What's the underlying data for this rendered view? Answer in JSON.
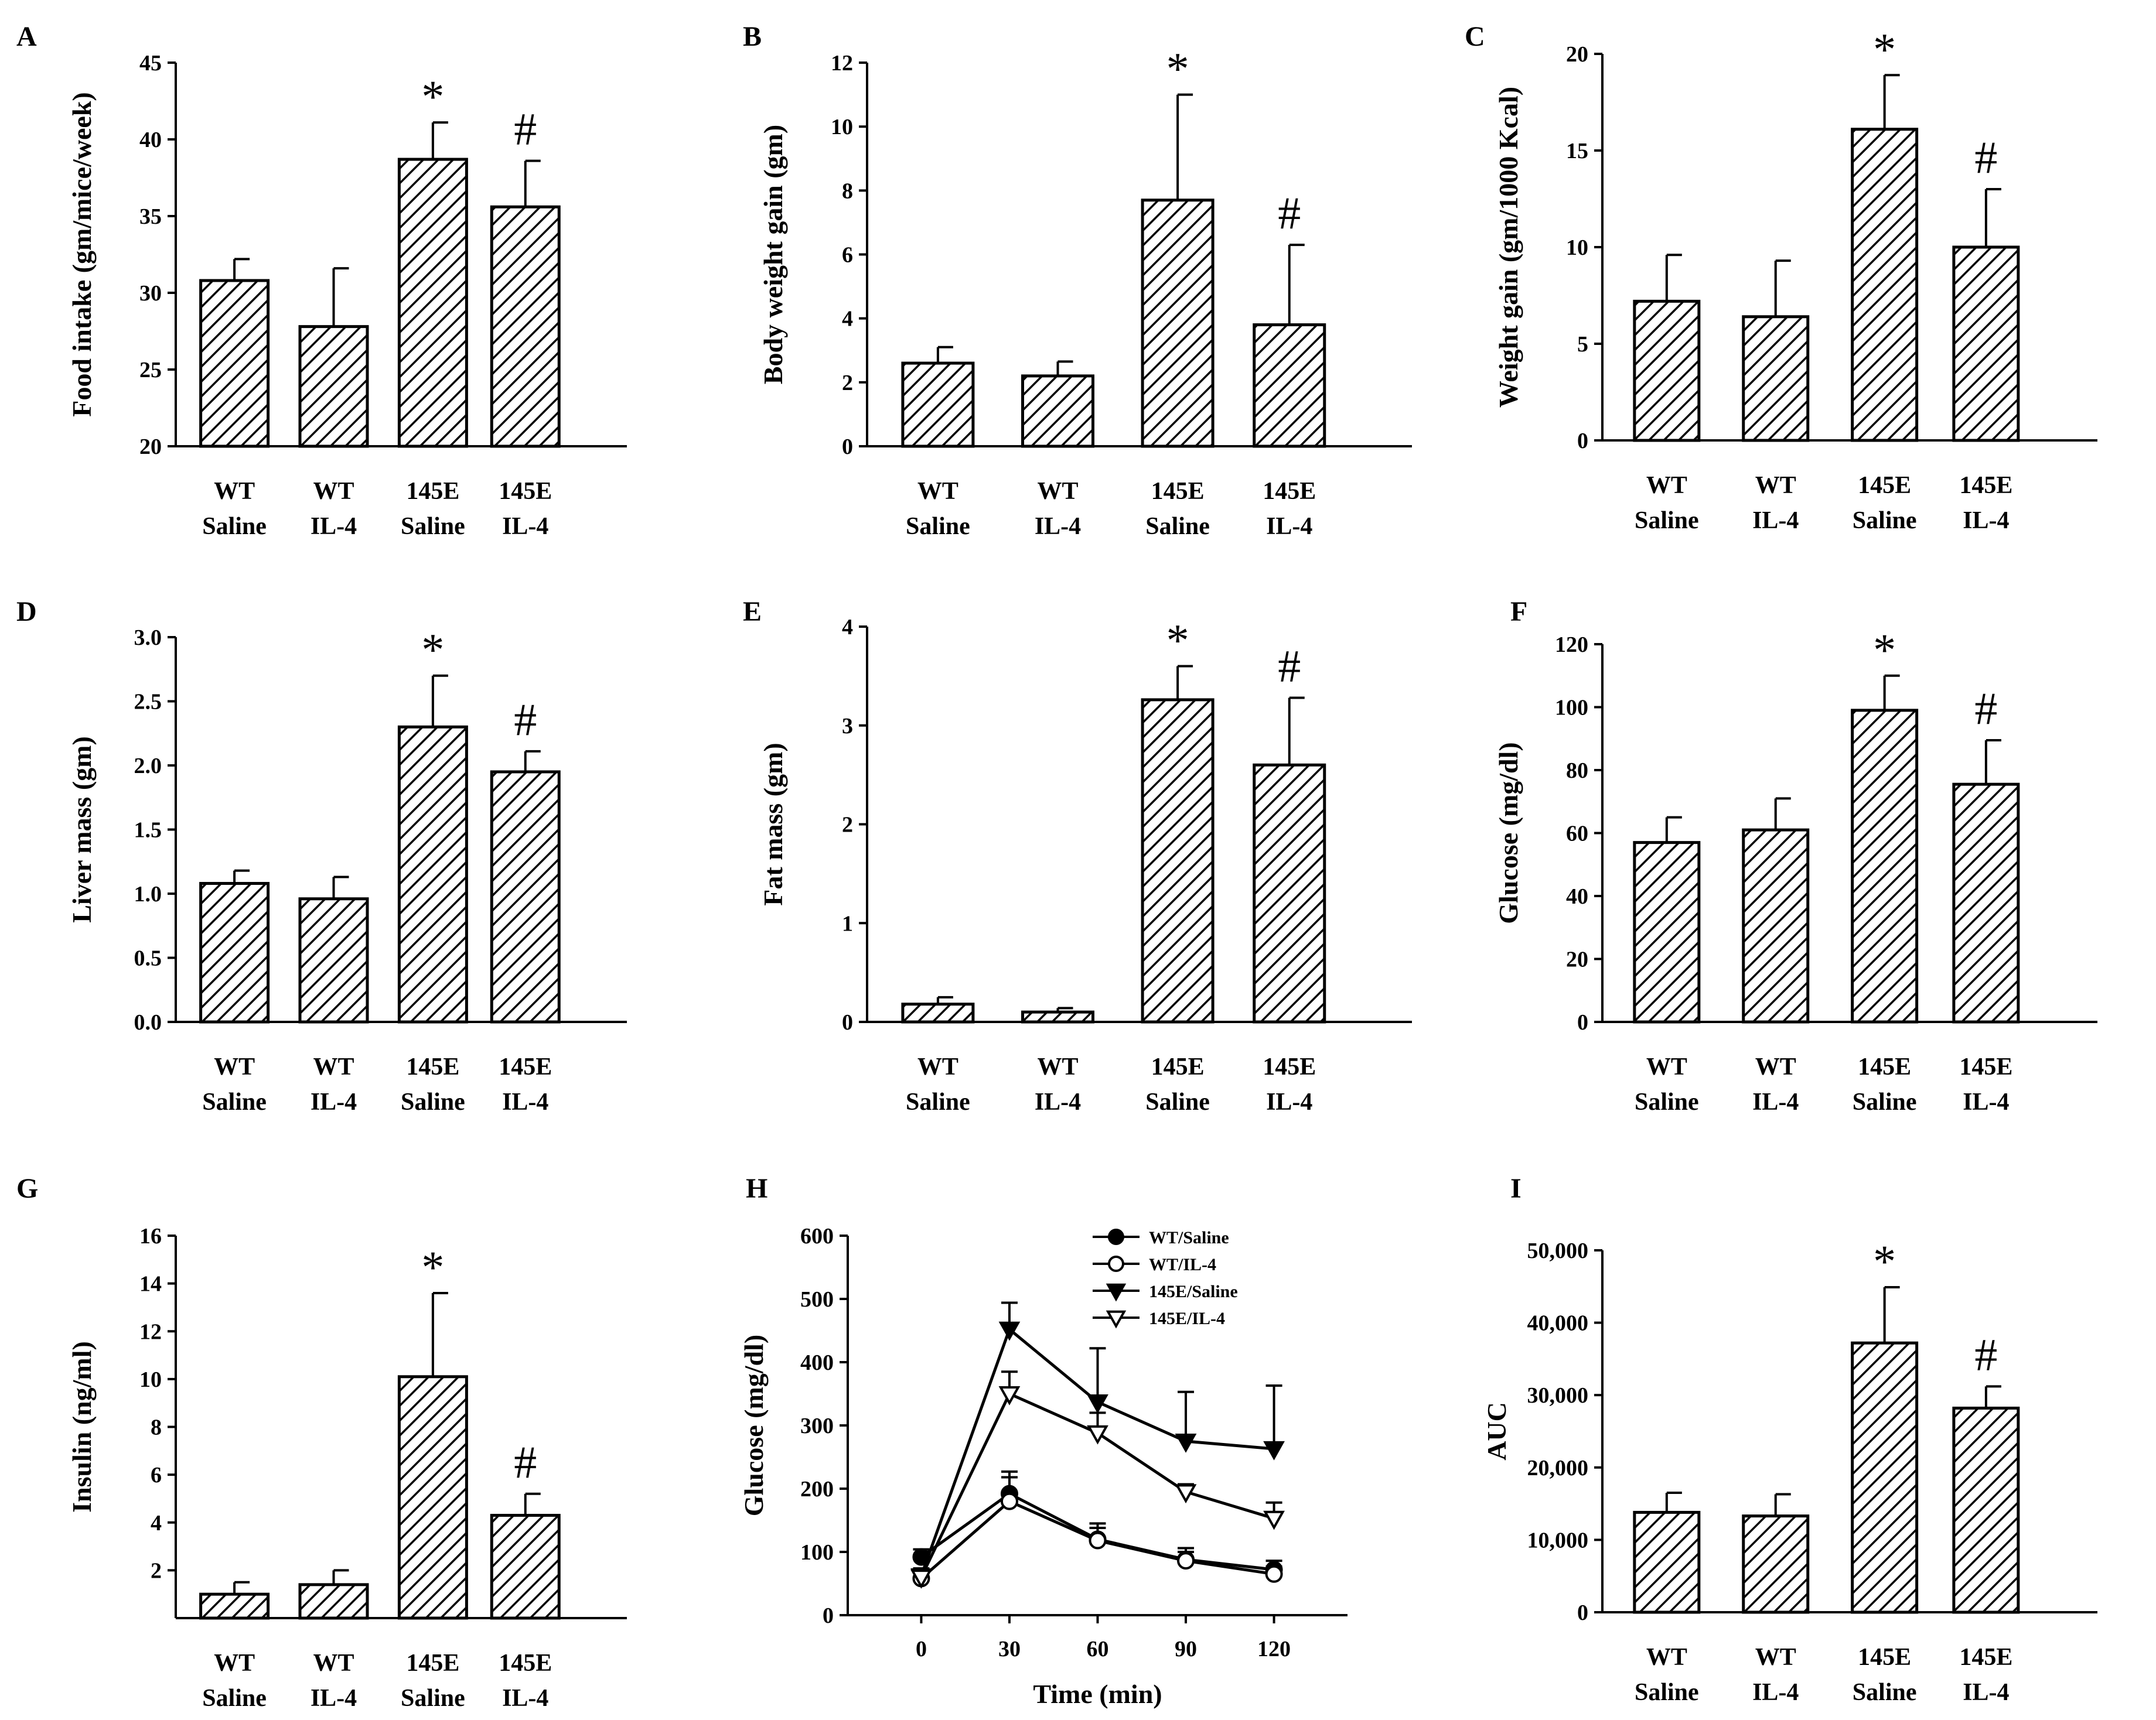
{
  "chart_data": [
    {
      "panel": "A",
      "type": "bar",
      "categories": [
        [
          "WT",
          "Saline"
        ],
        [
          "WT",
          "IL-4"
        ],
        [
          "145E",
          "Saline"
        ],
        [
          "145E",
          "IL-4"
        ]
      ],
      "values": [
        30.8,
        27.8,
        38.7,
        35.6
      ],
      "errors": [
        1.4,
        3.8,
        2.4,
        3.0
      ],
      "annotations": [
        "",
        "",
        "*",
        "#"
      ],
      "ylabel": "Food intake (gm/mice/week)",
      "ylim": [
        20,
        45
      ],
      "yticks": [
        "20",
        "25",
        "30",
        "35",
        "40",
        "45"
      ],
      "yticks_values": [
        20,
        25,
        30,
        35,
        40,
        45
      ]
    },
    {
      "panel": "B",
      "type": "bar",
      "categories": [
        [
          "WT",
          "Saline"
        ],
        [
          "WT",
          "IL-4"
        ],
        [
          "145E",
          "Saline"
        ],
        [
          "145E",
          "IL-4"
        ]
      ],
      "values": [
        2.6,
        2.2,
        7.7,
        3.8
      ],
      "errors": [
        0.5,
        0.45,
        3.3,
        2.5
      ],
      "annotations": [
        "",
        "",
        "*",
        "#"
      ],
      "ylabel": "Body weight gain (gm)",
      "ylim": [
        0,
        12
      ],
      "yticks": [
        "0",
        "2",
        "4",
        "6",
        "8",
        "10",
        "12"
      ],
      "yticks_values": [
        0,
        2,
        4,
        6,
        8,
        10,
        12
      ]
    },
    {
      "panel": "C",
      "type": "bar",
      "categories": [
        [
          "WT",
          "Saline"
        ],
        [
          "WT",
          "IL-4"
        ],
        [
          "145E",
          "Saline"
        ],
        [
          "145E",
          "IL-4"
        ]
      ],
      "values": [
        7.2,
        6.4,
        16.1,
        10.0
      ],
      "errors": [
        2.4,
        2.9,
        2.8,
        3.0
      ],
      "annotations": [
        "",
        "",
        "*",
        "#"
      ],
      "ylabel": "Weight gain (gm/1000 Kcal)",
      "ylim": [
        0,
        20
      ],
      "yticks": [
        "0",
        "5",
        "10",
        "15",
        "20"
      ],
      "yticks_values": [
        0,
        5,
        10,
        15,
        20
      ]
    },
    {
      "panel": "D",
      "type": "bar",
      "categories": [
        [
          "WT",
          "Saline"
        ],
        [
          "WT",
          "IL-4"
        ],
        [
          "145E",
          "Saline"
        ],
        [
          "145E",
          "IL-4"
        ]
      ],
      "values": [
        1.08,
        0.96,
        2.3,
        1.95
      ],
      "errors": [
        0.1,
        0.17,
        0.4,
        0.16
      ],
      "annotations": [
        "",
        "",
        "*",
        "#"
      ],
      "ylabel": "Liver mass (gm)",
      "ylim": [
        0,
        3
      ],
      "yticks": [
        "0.0",
        "0.5",
        "1.0",
        "1.5",
        "2.0",
        "2.5",
        "3.0"
      ],
      "yticks_values": [
        0,
        0.5,
        1,
        1.5,
        2,
        2.5,
        3
      ]
    },
    {
      "panel": "E",
      "type": "bar",
      "categories": [
        [
          "WT",
          "Saline"
        ],
        [
          "WT",
          "IL-4"
        ],
        [
          "145E",
          "Saline"
        ],
        [
          "145E",
          "IL-4"
        ]
      ],
      "values": [
        0.18,
        0.1,
        3.26,
        2.6
      ],
      "errors": [
        0.07,
        0.04,
        0.34,
        0.68
      ],
      "annotations": [
        "",
        "",
        "*",
        "#"
      ],
      "ylabel": "Fat mass (gm)",
      "ylim": [
        0,
        4
      ],
      "yticks": [
        "0",
        "1",
        "2",
        "3",
        "4"
      ],
      "yticks_values": [
        0,
        1,
        2,
        3,
        4
      ]
    },
    {
      "panel": "F",
      "type": "bar",
      "categories": [
        [
          "WT",
          "Saline"
        ],
        [
          "WT",
          "IL-4"
        ],
        [
          "145E",
          "Saline"
        ],
        [
          "145E",
          "IL-4"
        ]
      ],
      "values": [
        57,
        61,
        99,
        75.5
      ],
      "errors": [
        8,
        10,
        11,
        14
      ],
      "annotations": [
        "",
        "",
        "*",
        "#"
      ],
      "ylabel": "Glucose (mg/dl)",
      "ylim": [
        0,
        120
      ],
      "yticks": [
        "0",
        "20",
        "40",
        "60",
        "80",
        "100",
        "120"
      ],
      "yticks_values": [
        0,
        20,
        40,
        60,
        80,
        100,
        120
      ]
    },
    {
      "panel": "G",
      "type": "bar",
      "categories": [
        [
          "WT",
          "Saline"
        ],
        [
          "WT",
          "IL-4"
        ],
        [
          "145E",
          "Saline"
        ],
        [
          "145E",
          "IL-4"
        ]
      ],
      "values": [
        1.0,
        1.4,
        10.1,
        4.3
      ],
      "errors": [
        0.5,
        0.6,
        3.5,
        0.9
      ],
      "annotations": [
        "",
        "",
        "*",
        "#"
      ],
      "ylabel": "Insulin (ng/ml)",
      "ylim": [
        0,
        16
      ],
      "yticks": [
        "2",
        "4",
        "6",
        "8",
        "10",
        "12",
        "14",
        "16"
      ],
      "yticks_values": [
        2,
        4,
        6,
        8,
        10,
        12,
        14,
        16
      ]
    },
    {
      "panel": "H",
      "type": "line",
      "x": [
        0,
        30,
        60,
        90,
        120
      ],
      "xticks": [
        "0",
        "30",
        "60",
        "90",
        "120"
      ],
      "xlim": [
        -25,
        145
      ],
      "series": [
        {
          "name": "WT/Saline",
          "marker": "circle-filled",
          "values": [
            92,
            192,
            120,
            88,
            72
          ],
          "errors": [
            12,
            35,
            25,
            18,
            14
          ]
        },
        {
          "name": "WT/IL-4",
          "marker": "circle-open",
          "values": [
            58,
            180,
            118,
            86,
            65
          ],
          "errors": [
            10,
            38,
            20,
            14,
            12
          ]
        },
        {
          "name": "145E/Saline",
          "marker": "triangle-down-filled",
          "values": [
            62,
            452,
            337,
            275,
            263
          ],
          "errors": [
            12,
            42,
            85,
            78,
            100
          ]
        },
        {
          "name": "145E/IL-4",
          "marker": "triangle-down-open",
          "values": [
            60,
            350,
            288,
            195,
            153
          ],
          "errors": [
            10,
            35,
            32,
            12,
            25
          ]
        }
      ],
      "ylabel": "Glucose (mg/dl)",
      "xlabel": "Time (min)",
      "ylim": [
        0,
        600
      ],
      "yticks": [
        "0",
        "100",
        "200",
        "300",
        "400",
        "500",
        "600"
      ],
      "yticks_values": [
        0,
        100,
        200,
        300,
        400,
        500,
        600
      ],
      "legend": "top-right"
    },
    {
      "panel": "I",
      "type": "bar",
      "categories": [
        [
          "WT",
          "Saline"
        ],
        [
          "WT",
          "IL-4"
        ],
        [
          "145E",
          "Saline"
        ],
        [
          "145E",
          "IL-4"
        ]
      ],
      "values": [
        13800,
        13300,
        37200,
        28200
      ],
      "errors": [
        2700,
        3000,
        7700,
        3000
      ],
      "annotations": [
        "",
        "",
        "*",
        "#"
      ],
      "ylabel": "AUC",
      "ylim": [
        0,
        50000
      ],
      "yticks": [
        "0",
        "10,000",
        "20,000",
        "30,000",
        "40,000",
        "50,000"
      ],
      "yticks_values": [
        0,
        10000,
        20000,
        30000,
        40000,
        50000
      ]
    }
  ]
}
